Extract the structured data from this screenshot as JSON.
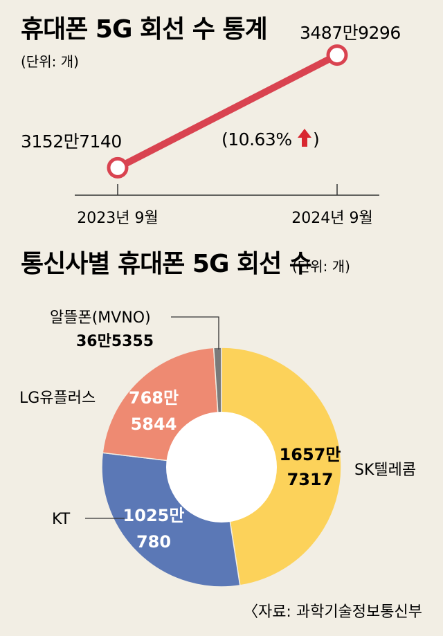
{
  "chart_data": [
    {
      "type": "line",
      "title": "휴대폰 5G 회선 수 통계",
      "unit": "(단위: 개)",
      "x": [
        "2023년 9월",
        "2024년 9월"
      ],
      "series": [
        {
          "values": [
            31527140,
            34879296
          ],
          "labels": [
            "3152만7140",
            "3487만9296"
          ]
        }
      ],
      "annotation": "(10.63%",
      "annotation_arrow": "up"
    },
    {
      "type": "pie",
      "title": "통신사별 휴대폰 5G 회선 수",
      "unit": "(단위: 개)",
      "slices": [
        {
          "name": "SK텔레콤",
          "value": 16577317,
          "label_top": "1657만",
          "label_bottom": "7317",
          "color": "#fcd25a"
        },
        {
          "name": "KT",
          "value": 10250780,
          "label_top": "1025만",
          "label_bottom": "780",
          "color": "#5b78b6"
        },
        {
          "name": "LG유플러스",
          "value": 7685844,
          "label_top": "768만",
          "label_bottom": "5844",
          "color": "#ee8a72"
        },
        {
          "name": "알뜰폰(MVNO)",
          "value": 365355,
          "label_top": "36만5355",
          "label_bottom": "",
          "color": "#7a7a7a"
        }
      ]
    }
  ],
  "source": "〈자료: 과학기술정보통신부"
}
